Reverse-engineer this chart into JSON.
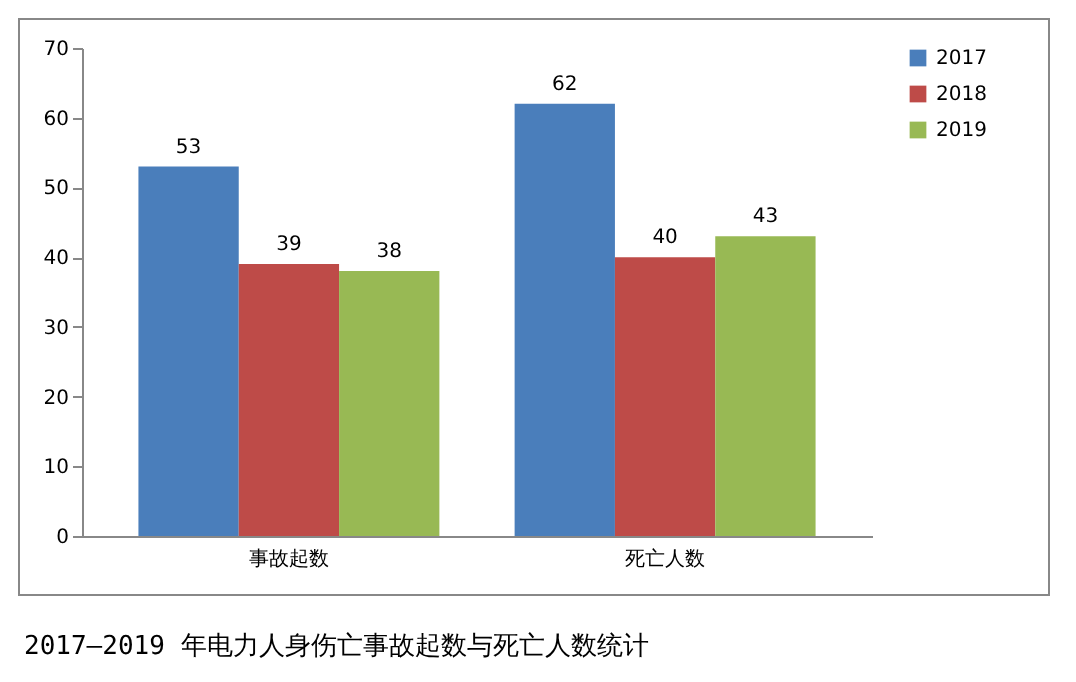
{
  "chart_data": {
    "type": "bar",
    "title": "2017—2019 年电力人身伤亡事故起数与死亡人数统计",
    "categories": [
      "事故起数",
      "死亡人数"
    ],
    "series": [
      {
        "name": "2017",
        "color": "#4a7ebb",
        "values": [
          53,
          62
        ]
      },
      {
        "name": "2018",
        "color": "#be4b48",
        "values": [
          39,
          40
        ]
      },
      {
        "name": "2019",
        "color": "#98b954",
        "values": [
          38,
          43
        ]
      }
    ],
    "ylim": [
      0,
      70
    ],
    "yticks": [
      0,
      10,
      20,
      30,
      40,
      50,
      60,
      70
    ],
    "grid": false,
    "legend": "right",
    "data_labels": true
  }
}
